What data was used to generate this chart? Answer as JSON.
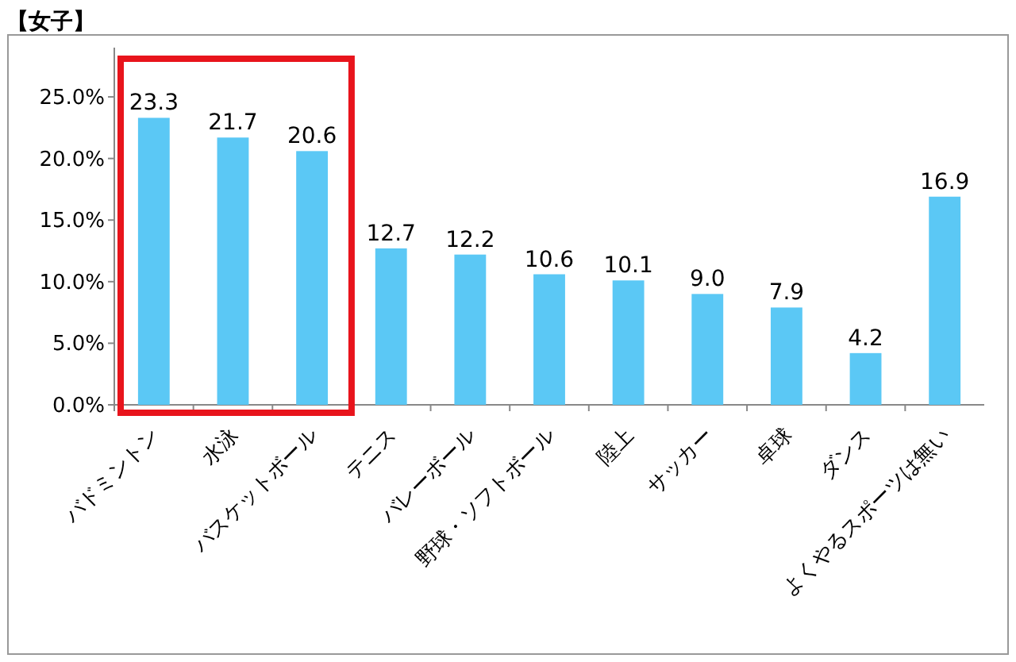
{
  "chart_data": {
    "type": "bar",
    "title": "【女子】",
    "categories": [
      "バドミントン",
      "水泳",
      "バスケットボール",
      "テニス",
      "バレーボール",
      "野球・ソフトボール",
      "陸上",
      "サッカー",
      "卓球",
      "ダンス",
      "よくやるスポーツは無い"
    ],
    "values": [
      23.3,
      21.7,
      20.6,
      12.7,
      12.2,
      10.6,
      10.1,
      9.0,
      7.9,
      4.2,
      16.9
    ],
    "value_labels": [
      "23.3",
      "21.7",
      "20.6",
      "12.7",
      "12.2",
      "10.6",
      "10.1",
      "9.0",
      "7.9",
      "4.2",
      "16.9"
    ],
    "color": "#5bc8f5",
    "ylim": [
      0,
      29
    ],
    "yticks": [
      {
        "value": 0,
        "label": "0.0%"
      },
      {
        "value": 5,
        "label": "5.0%"
      },
      {
        "value": 10,
        "label": "10.0%"
      },
      {
        "value": 15,
        "label": "15.0%"
      },
      {
        "value": 20,
        "label": "20.0%"
      },
      {
        "value": 25,
        "label": "25.0%"
      }
    ],
    "grid": false
  }
}
